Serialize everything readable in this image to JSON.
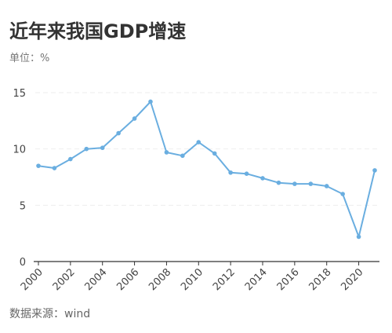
{
  "header": {
    "title": "近年来我国GDP增速",
    "unit": "单位：%"
  },
  "footer": {
    "source": "数据来源：wind"
  },
  "colors": {
    "line": "#6aaee0",
    "grid": "#eeeeee",
    "axis": "#333333"
  },
  "chart_data": {
    "type": "line",
    "title": "近年来我国GDP增速",
    "xlabel": "",
    "ylabel": "",
    "ylim": [
      0,
      15
    ],
    "yticks": [
      0,
      5,
      10,
      15
    ],
    "xlim": [
      2000,
      2021
    ],
    "xticks": [
      2000,
      2002,
      2004,
      2006,
      2008,
      2010,
      2012,
      2014,
      2016,
      2018,
      2020
    ],
    "grid": true,
    "legend": "none",
    "series": [
      {
        "x": [
          2000,
          2001,
          2002,
          2003,
          2004,
          2005,
          2006,
          2007,
          2008,
          2009,
          2010,
          2011,
          2012,
          2013,
          2014,
          2015,
          2016,
          2017,
          2018,
          2019,
          2020,
          2021
        ],
        "values": [
          8.5,
          8.3,
          9.1,
          10.0,
          10.1,
          11.4,
          12.7,
          14.2,
          9.7,
          9.4,
          10.6,
          9.6,
          7.9,
          7.8,
          7.4,
          7.0,
          6.9,
          6.9,
          6.7,
          6.0,
          2.2,
          8.1
        ]
      }
    ]
  }
}
